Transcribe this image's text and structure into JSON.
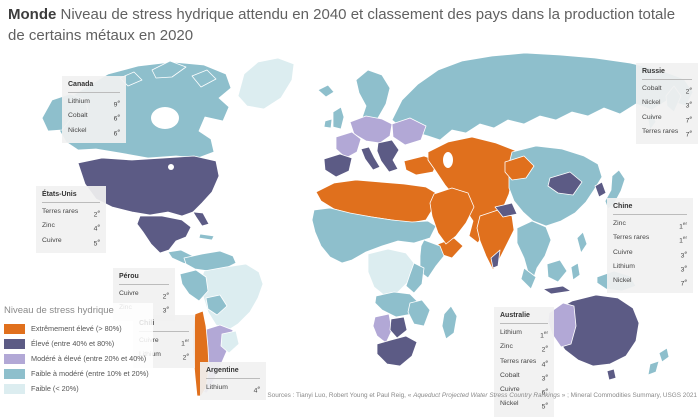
{
  "title": {
    "bold": "Monde",
    "rest": "Niveau de stress hydrique attendu en 2040 et classement des pays dans la production totale de certains métaux en 2020"
  },
  "legend": {
    "title": "Niveau de stress hydrique",
    "items": [
      {
        "key": "extreme",
        "label": "Extrêmement élevé (> 80%)",
        "color": "#e0701d"
      },
      {
        "key": "high",
        "label": "Élevé (entre 40% et 80%)",
        "color": "#5c5b85"
      },
      {
        "key": "medhigh",
        "label": "Modéré à élevé (entre 20% et 40%)",
        "color": "#b2a8d6"
      },
      {
        "key": "lowmed",
        "label": "Faible à modéré (entre 10% et 20%)",
        "color": "#8ebfcc"
      },
      {
        "key": "low",
        "label": "Faible (< 20%)",
        "color": "#dcedf0"
      }
    ]
  },
  "callouts": [
    {
      "id": "canada",
      "country": "Canada",
      "rows": [
        {
          "metal": "Lithium",
          "rank": "9",
          "suffix": "e"
        },
        {
          "metal": "Cobalt",
          "rank": "6",
          "suffix": "e"
        },
        {
          "metal": "Nickel",
          "rank": "6",
          "suffix": "e"
        }
      ]
    },
    {
      "id": "etats-unis",
      "country": "États-Unis",
      "rows": [
        {
          "metal": "Terres rares",
          "rank": "2",
          "suffix": "e"
        },
        {
          "metal": "Zinc",
          "rank": "4",
          "suffix": "e"
        },
        {
          "metal": "Cuivre",
          "rank": "5",
          "suffix": "e"
        }
      ]
    },
    {
      "id": "perou",
      "country": "Pérou",
      "rows": [
        {
          "metal": "Cuivre",
          "rank": "2",
          "suffix": "e"
        },
        {
          "metal": "Zinc",
          "rank": "3",
          "suffix": "e"
        }
      ]
    },
    {
      "id": "chili",
      "country": "Chili",
      "rows": [
        {
          "metal": "Cuivre",
          "rank": "1",
          "suffix": "er"
        },
        {
          "metal": "Lithium",
          "rank": "2",
          "suffix": "e"
        }
      ]
    },
    {
      "id": "argentine",
      "country": "Argentine",
      "rows": [
        {
          "metal": "Lithium",
          "rank": "4",
          "suffix": "e"
        }
      ]
    },
    {
      "id": "russie",
      "country": "Russie",
      "rows": [
        {
          "metal": "Cobalt",
          "rank": "2",
          "suffix": "e"
        },
        {
          "metal": "Nickel",
          "rank": "3",
          "suffix": "e"
        },
        {
          "metal": "Cuivre",
          "rank": "7",
          "suffix": "e"
        },
        {
          "metal": "Terres rares",
          "rank": "7",
          "suffix": "e"
        }
      ]
    },
    {
      "id": "chine",
      "country": "Chine",
      "rows": [
        {
          "metal": "Zinc",
          "rank": "1",
          "suffix": "er"
        },
        {
          "metal": "Terres rares",
          "rank": "1",
          "suffix": "er"
        },
        {
          "metal": "Cuivre",
          "rank": "3",
          "suffix": "e"
        },
        {
          "metal": "Lithium",
          "rank": "3",
          "suffix": "e"
        },
        {
          "metal": "Nickel",
          "rank": "7",
          "suffix": "e"
        }
      ]
    },
    {
      "id": "australie",
      "country": "Australie",
      "rows": [
        {
          "metal": "Lithium",
          "rank": "1",
          "suffix": "er"
        },
        {
          "metal": "Zinc",
          "rank": "2",
          "suffix": "e"
        },
        {
          "metal": "Terres rares",
          "rank": "4",
          "suffix": "e"
        },
        {
          "metal": "Cobalt",
          "rank": "3",
          "suffix": "e"
        },
        {
          "metal": "Cuivre",
          "rank": "6",
          "suffix": "e"
        },
        {
          "metal": "Nickel",
          "rank": "5",
          "suffix": "e"
        }
      ]
    }
  ],
  "source": {
    "pre": "Sources : Tianyi Luo, Robert Young et Paul Reig, « ",
    "italic": "Aqueduct Projected Water Stress Country Rankings",
    "post": " » ; Mineral Commodities Summary, USGS 2021"
  }
}
